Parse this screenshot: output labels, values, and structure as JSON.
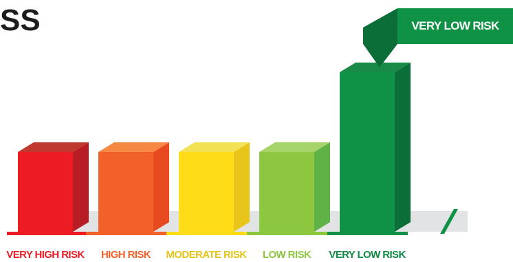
{
  "title": "SS",
  "chart_data": {
    "type": "bar",
    "categories": [
      "VERY HIGH RISK",
      "HIGH RISK",
      "MODERATE RISK",
      "LOW RISK",
      "VERY LOW RISK"
    ],
    "values": [
      1,
      1,
      1,
      1,
      2
    ],
    "highlighted_category": "VERY LOW RISK",
    "callout_label": "VERY LOW RISK",
    "colors": {
      "VERY HIGH RISK": {
        "front": "#ed1c24",
        "top": "#c0392f",
        "side": "#b81d25",
        "label": "#ed1c24"
      },
      "HIGH RISK": {
        "front": "#f26129",
        "top": "#f58842",
        "side": "#e84a1f",
        "label": "#f26129"
      },
      "MODERATE RISK": {
        "front": "#ffdc17",
        "top": "#f3e156",
        "side": "#e8c51a",
        "label": "#e5c41a"
      },
      "LOW RISK": {
        "front": "#8dc63f",
        "top": "#a6d46a",
        "side": "#5fb346",
        "label": "#8dc63f"
      },
      "VERY LOW RISK": {
        "front": "#0f9146",
        "top": "#1a8a48",
        "side": "#0b6d38",
        "label": "#0f8a45"
      }
    },
    "floor_color": "#e2e3e4"
  }
}
